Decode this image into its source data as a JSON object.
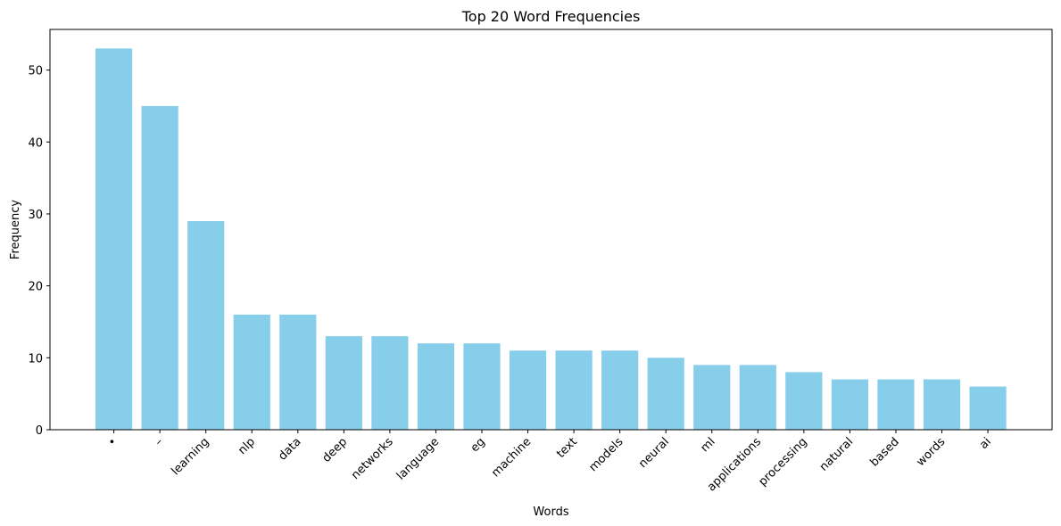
{
  "chart_data": {
    "type": "bar",
    "title": "Top 20 Word Frequencies",
    "xlabel": "Words",
    "ylabel": "Frequency",
    "categories": [
      "•",
      "–",
      "learning",
      "nlp",
      "data",
      "deep",
      "networks",
      "language",
      "eg",
      "machine",
      "text",
      "models",
      "neural",
      "ml",
      "applications",
      "processing",
      "natural",
      "based",
      "words",
      "ai"
    ],
    "values": [
      53,
      45,
      29,
      16,
      16,
      13,
      13,
      12,
      12,
      11,
      11,
      11,
      10,
      9,
      9,
      8,
      7,
      7,
      7,
      6
    ],
    "ylim": [
      0,
      55.65
    ],
    "yticks": [
      0,
      10,
      20,
      30,
      40,
      50
    ],
    "bar_color": "#87ceeb",
    "grid": false,
    "legend": "none"
  }
}
